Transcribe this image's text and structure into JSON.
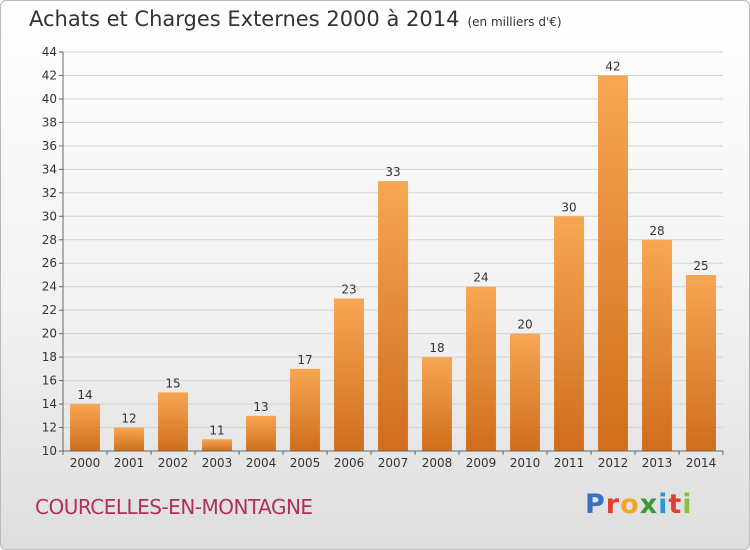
{
  "title": "Achats et Charges Externes 2000 à 2014",
  "unit": "(en milliers d'€)",
  "commune": "COURCELLES-EN-MONTAGNE",
  "logo": {
    "text": "Proxiti",
    "letters": [
      "P",
      "r",
      "o",
      "x",
      "i",
      "t",
      "i"
    ],
    "colors": [
      "#3a6fc4",
      "#e2402e",
      "#f0a52a",
      "#3a9a3a",
      "#2a9ad6",
      "#e2402e",
      "#8cc03a"
    ]
  },
  "colors": {
    "bar_light": "#f7a654",
    "bar_dark": "#cf6e1c",
    "grid": "#d2d2d2",
    "axis": "#666666"
  },
  "chart_data": {
    "type": "bar",
    "categories": [
      "2000",
      "2001",
      "2002",
      "2003",
      "2004",
      "2005",
      "2006",
      "2007",
      "2008",
      "2009",
      "2010",
      "2011",
      "2012",
      "2013",
      "2014"
    ],
    "values": [
      14,
      12,
      15,
      11,
      13,
      17,
      23,
      33,
      18,
      24,
      20,
      30,
      42,
      28,
      25
    ],
    "ylim": [
      10,
      44
    ],
    "yticks": [
      10,
      12,
      14,
      16,
      18,
      20,
      22,
      24,
      26,
      28,
      30,
      32,
      34,
      36,
      38,
      40,
      42,
      44
    ],
    "grid": true
  }
}
